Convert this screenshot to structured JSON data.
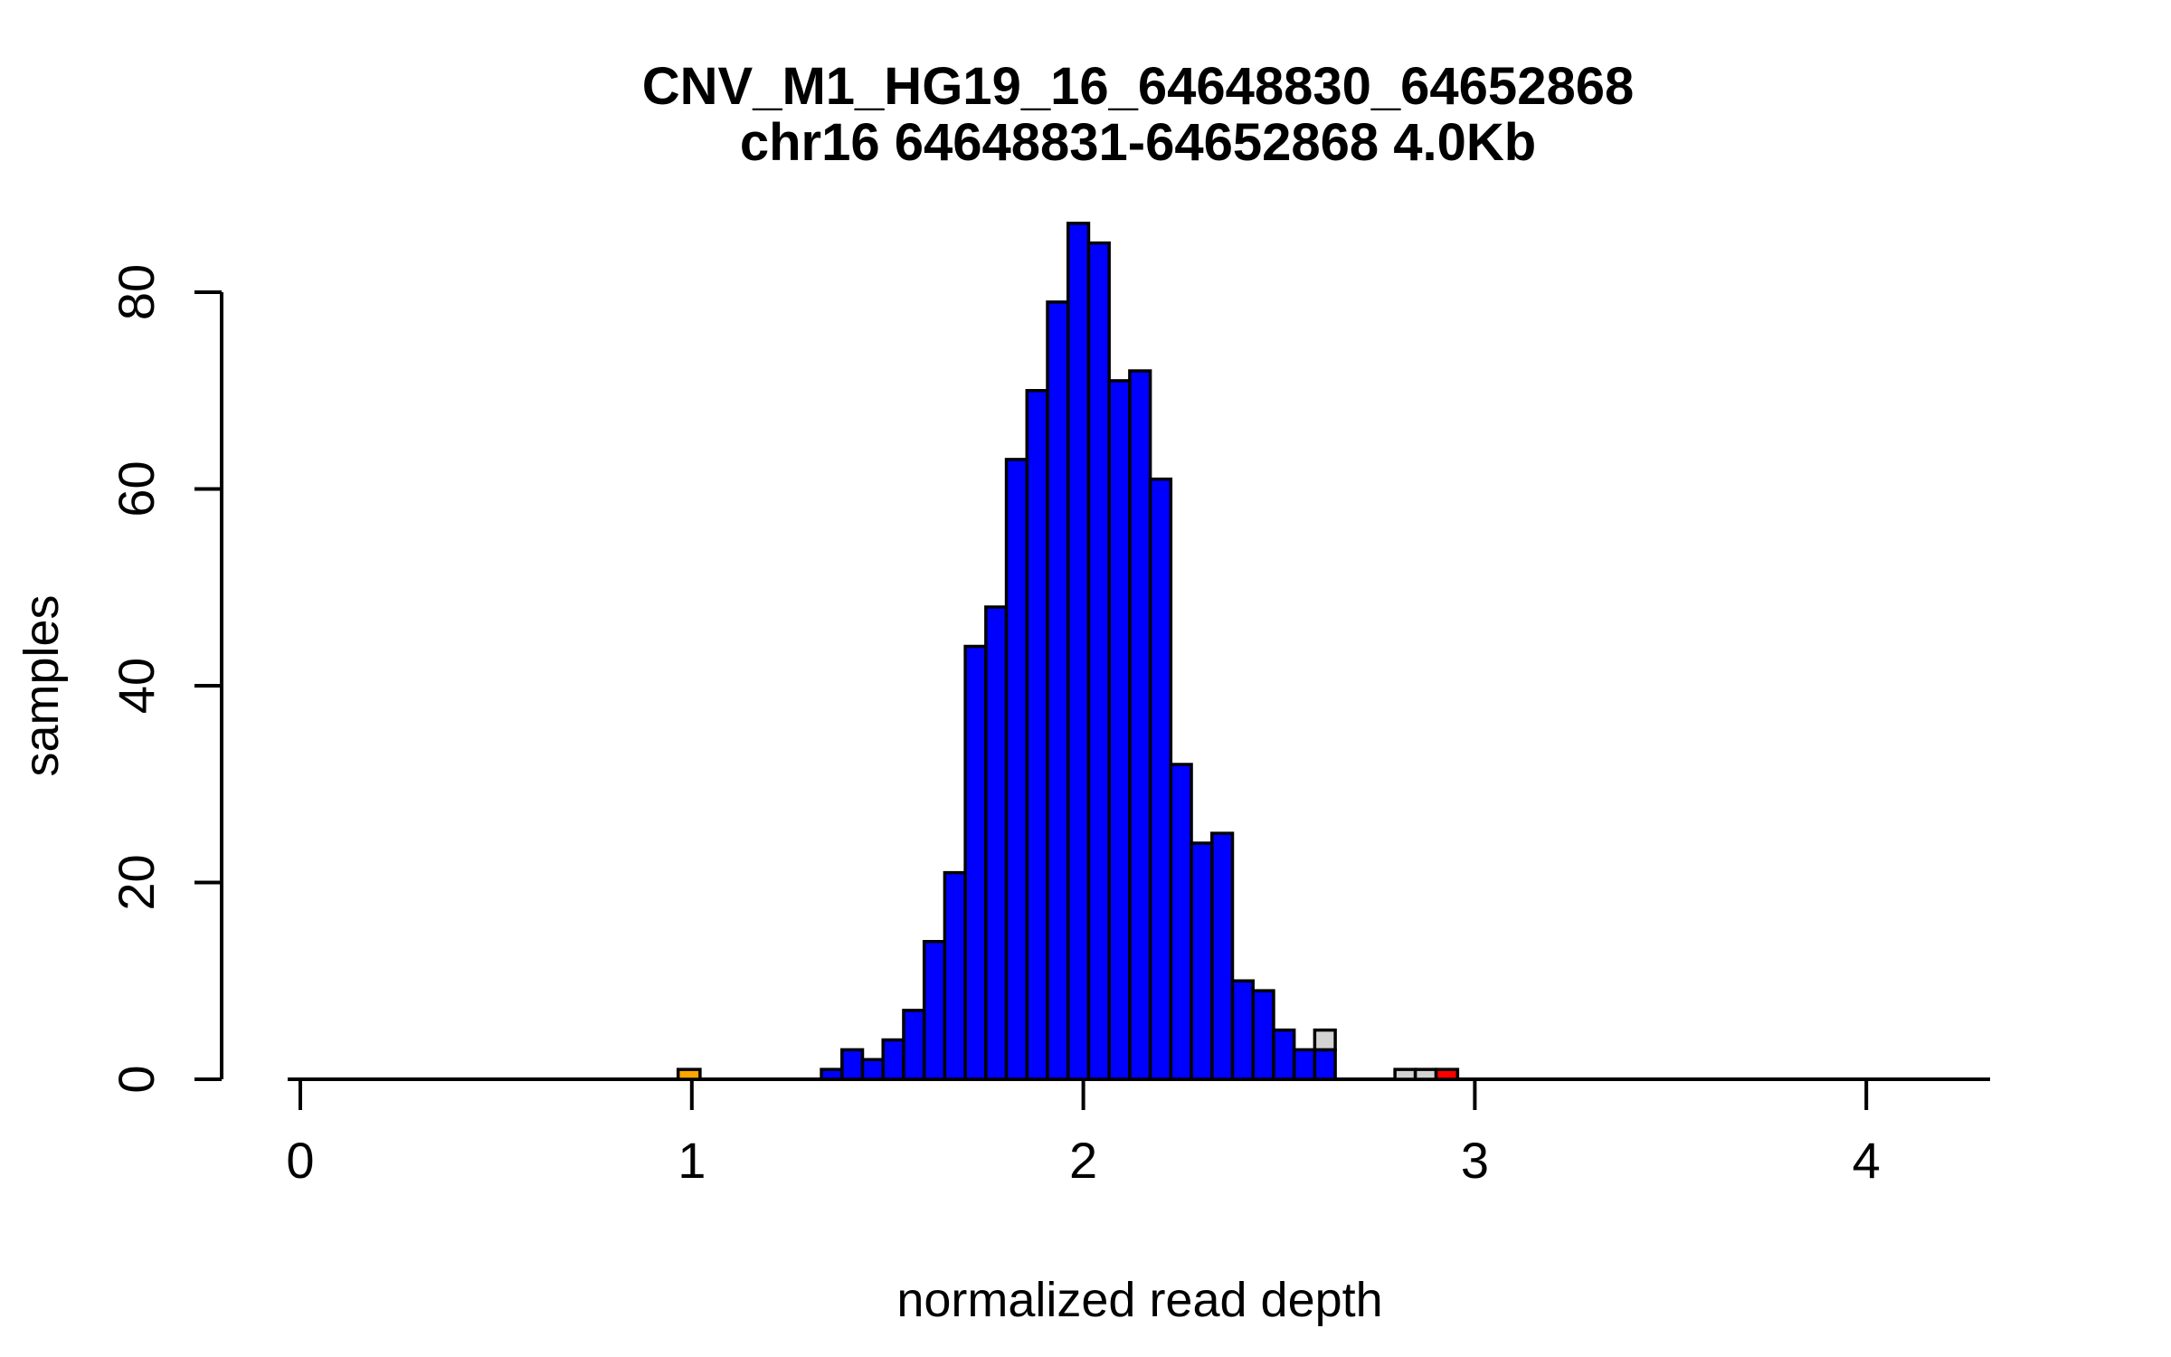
{
  "chart_data": {
    "type": "bar",
    "subtype": "histogram",
    "title_line1": "CNV_M1_HG19_16_64648830_64652868",
    "title_line2": "chr16 64648831-64652868 4.0Kb",
    "xlabel": "normalized read depth",
    "ylabel": "samples",
    "x_ticks": [
      0,
      1,
      2,
      3,
      4
    ],
    "y_ticks": [
      0,
      20,
      40,
      60,
      80
    ],
    "xlim": [
      -0.03,
      4.32
    ],
    "ylim": [
      0,
      87
    ],
    "grid": false,
    "legend": "none",
    "bin_width": 0.0525,
    "main_histogram": {
      "color": "#0000FF",
      "border_color": "#000000",
      "bin_start": 1.331,
      "bins_approx_range": [
        1.33,
        2.64
      ],
      "counts": [
        1,
        3,
        2,
        4,
        7,
        14,
        21,
        44,
        48,
        63,
        70,
        79,
        87,
        85,
        71,
        72,
        61,
        32,
        24,
        25,
        10,
        9,
        5,
        3,
        3
      ]
    },
    "overlay_segments": [
      {
        "name": "gray-cap-on-last-blue-bin",
        "bin_index": 24,
        "y_from": 3,
        "y_to": 5,
        "color": "#D3D3D3"
      }
    ],
    "isolated_bars": [
      {
        "name": "orange-sample-bar",
        "x_start": 0.965,
        "x_end": 1.021,
        "count": 1,
        "color": "#FFA500"
      },
      {
        "name": "gray-sample-bar-1",
        "x_start": 2.796,
        "x_end": 2.848,
        "count": 1,
        "color": "#D3D3D3"
      },
      {
        "name": "gray-sample-bar-2",
        "x_start": 2.848,
        "x_end": 2.901,
        "count": 1,
        "color": "#D3D3D3"
      },
      {
        "name": "red-sample-bar",
        "x_start": 2.901,
        "x_end": 2.956,
        "count": 1,
        "color": "#FF0000"
      }
    ],
    "colors": {
      "blue": "#0000FF",
      "gray": "#D3D3D3",
      "orange": "#FFA500",
      "red": "#FF0000",
      "axis": "#000000",
      "background": "#FFFFFF"
    }
  }
}
